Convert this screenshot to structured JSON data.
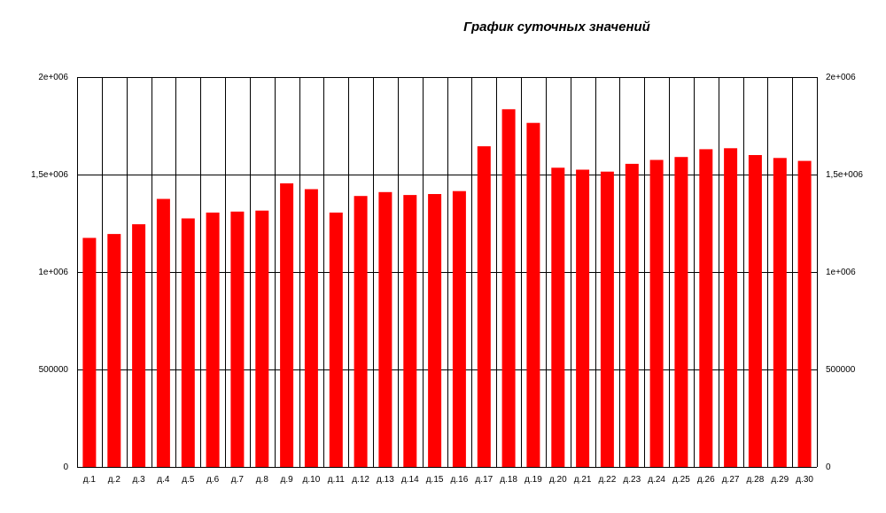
{
  "chart_data": {
    "type": "bar",
    "title": "График суточных значений",
    "categories": [
      "д.1",
      "д.2",
      "д.3",
      "д.4",
      "д.5",
      "д.6",
      "д.7",
      "д.8",
      "д.9",
      "д.10",
      "д.11",
      "д.12",
      "д.13",
      "д.14",
      "д.15",
      "д.16",
      "д.17",
      "д.18",
      "д.19",
      "д.20",
      "д.21",
      "д.22",
      "д.23",
      "д.24",
      "д.25",
      "д.26",
      "д.27",
      "д.28",
      "д.29",
      "д.30"
    ],
    "values": [
      1175000,
      1195000,
      1245000,
      1375000,
      1275000,
      1305000,
      1310000,
      1315000,
      1455000,
      1425000,
      1305000,
      1390000,
      1410000,
      1395000,
      1400000,
      1415000,
      1645000,
      1835000,
      1765000,
      1535000,
      1525000,
      1515000,
      1555000,
      1575000,
      1590000,
      1630000,
      1635000,
      1600000,
      1585000,
      1570000
    ],
    "ylim": [
      0,
      2000000
    ],
    "y_ticks": [
      0,
      500000,
      1000000,
      1500000,
      2000000
    ],
    "y_tick_labels": [
      "0",
      "500000",
      "1e+006",
      "1,5e+006",
      "2e+006"
    ],
    "grid": "vertical and horizontal",
    "bar_color": "#ff0000",
    "legend": "none",
    "xlabel": "",
    "ylabel": ""
  }
}
